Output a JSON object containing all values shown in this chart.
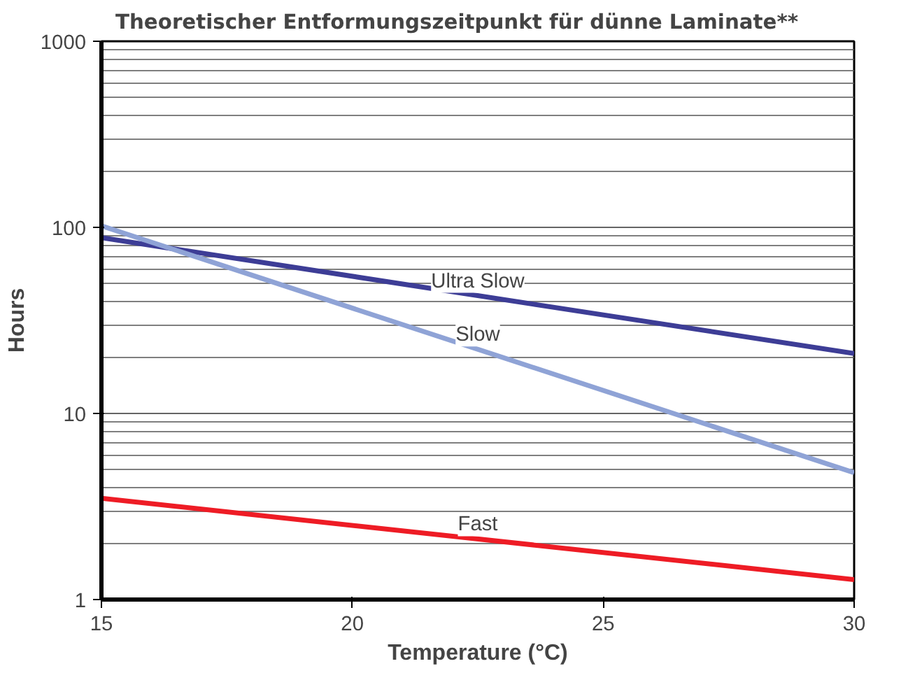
{
  "chart_data": {
    "type": "line",
    "title": "Theoretischer Entformungszeitpunkt für dünne Laminate**",
    "xlabel": "Temperature (°C)",
    "ylabel": "Hours",
    "x": [
      15,
      30
    ],
    "xlim": [
      15,
      30
    ],
    "xticks": [
      15,
      20,
      25,
      30
    ],
    "ylim": [
      1,
      1000
    ],
    "yticks": [
      1,
      10,
      100,
      1000
    ],
    "log": true,
    "grid": "y",
    "legend": false,
    "marker": "none",
    "line_style": "solid",
    "series": [
      {
        "name": "Ultra Slow",
        "color": "#3d3d96",
        "values": [
          88,
          21
        ]
      },
      {
        "name": "Slow",
        "color": "#8fa3d6",
        "values": [
          102,
          4.8
        ]
      },
      {
        "name": "Fast",
        "color": "#ee1c25",
        "values": [
          3.5,
          1.28
        ]
      }
    ]
  }
}
